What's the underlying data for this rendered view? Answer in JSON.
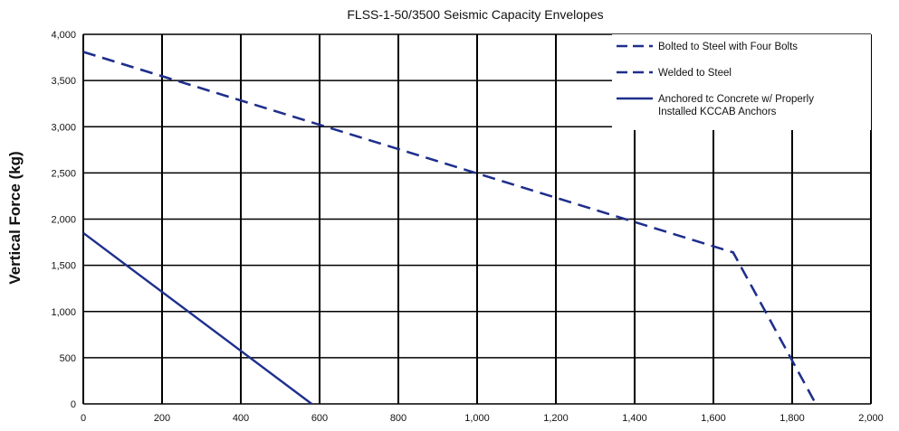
{
  "chart_data": {
    "type": "line",
    "title": "FLSS-1-50/3500 Seismic Capacity Envelopes",
    "xlabel": "",
    "ylabel": "Vertical Force (kg)",
    "xlim": [
      0,
      2000
    ],
    "ylim": [
      0,
      4000
    ],
    "x_ticks": [
      "0",
      "200",
      "400",
      "600",
      "800",
      "1,000",
      "1,200",
      "1,400",
      "1,600",
      "1,800",
      "2,000"
    ],
    "y_ticks": [
      "0",
      "500",
      "1,000",
      "1,500",
      "2,000",
      "2,500",
      "3,000",
      "3,500",
      "4,000"
    ],
    "grid": true,
    "legend_position": "top-right",
    "colors": {
      "series": "#1f2f8c",
      "grid": "#000000",
      "background": "#ffffff"
    },
    "series": [
      {
        "name": "Bolted to Steel with Four Bolts",
        "style": "dashed",
        "points": [
          [
            0,
            3810
          ],
          [
            1650,
            1640
          ],
          [
            1860,
            0
          ]
        ]
      },
      {
        "name": "Welded to Steel",
        "style": "dashed",
        "points": [
          [
            0,
            3810
          ],
          [
            1650,
            1640
          ],
          [
            1860,
            0
          ]
        ]
      },
      {
        "name": "Anchored tc Concrete w/ Properly Installed KCCAB Anchors",
        "legend_lines": [
          "Anchored tc Concrete w/ Properly",
          "Installed KCCAB Anchors"
        ],
        "style": "solid",
        "points": [
          [
            0,
            1850
          ],
          [
            580,
            0
          ]
        ]
      }
    ]
  }
}
